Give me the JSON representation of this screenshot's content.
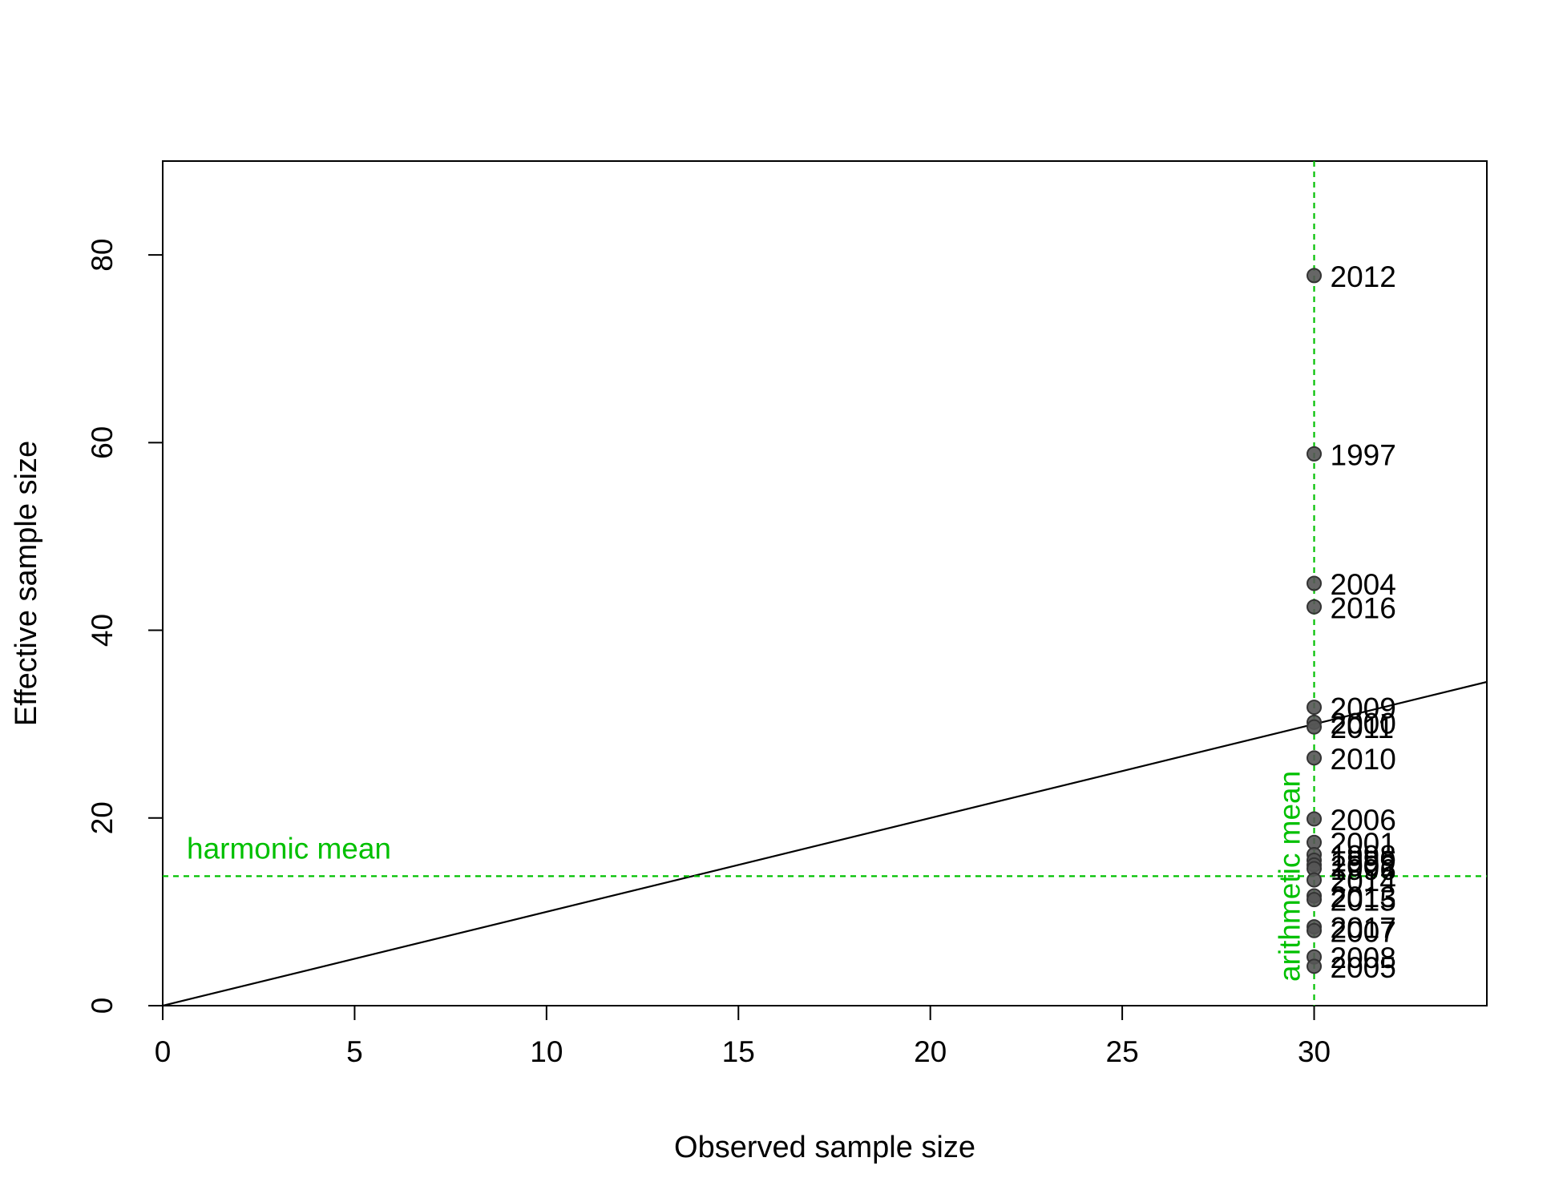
{
  "chart_data": {
    "type": "scatter",
    "title": "",
    "xlabel": "Observed sample size",
    "ylabel": "Effective sample size",
    "xlim": [
      0,
      34.5
    ],
    "ylim": [
      0,
      90
    ],
    "xticks": [
      0,
      5,
      10,
      15,
      20,
      25,
      30
    ],
    "yticks": [
      0,
      20,
      40,
      60,
      80
    ],
    "grid": false,
    "points": [
      {
        "label": "2012",
        "x": 30,
        "y": 77.8
      },
      {
        "label": "1997",
        "x": 30,
        "y": 58.8
      },
      {
        "label": "2004",
        "x": 30,
        "y": 45.0
      },
      {
        "label": "2016",
        "x": 30,
        "y": 42.5
      },
      {
        "label": "2009",
        "x": 30,
        "y": 31.8
      },
      {
        "label": "2000",
        "x": 30,
        "y": 30.2
      },
      {
        "label": "2011",
        "x": 30,
        "y": 29.7
      },
      {
        "label": "2010",
        "x": 30,
        "y": 26.4
      },
      {
        "label": "2006",
        "x": 30,
        "y": 19.9
      },
      {
        "label": "2001",
        "x": 30,
        "y": 17.4
      },
      {
        "label": "1998",
        "x": 30,
        "y": 16.1
      },
      {
        "label": "1999",
        "x": 30,
        "y": 15.5
      },
      {
        "label": "2002",
        "x": 30,
        "y": 15.0
      },
      {
        "label": "1996",
        "x": 30,
        "y": 14.6
      },
      {
        "label": "2014",
        "x": 30,
        "y": 13.4
      },
      {
        "label": "2013",
        "x": 30,
        "y": 11.7
      },
      {
        "label": "2015",
        "x": 30,
        "y": 11.3
      },
      {
        "label": "2017",
        "x": 30,
        "y": 8.4
      },
      {
        "label": "2007",
        "x": 30,
        "y": 8.0
      },
      {
        "label": "2008",
        "x": 30,
        "y": 5.2
      },
      {
        "label": "2005",
        "x": 30,
        "y": 4.2
      }
    ],
    "reference_line": {
      "slope": 1,
      "intercept": 0,
      "color": "#000000"
    },
    "harmonic_mean": {
      "value": 13.8,
      "label": "harmonic mean",
      "color": "#00c000"
    },
    "arithmetic_mean": {
      "value": 30,
      "label": "arithmetic mean",
      "color": "#00c000"
    },
    "point_fill": "#555555",
    "point_stroke": "#333333"
  }
}
